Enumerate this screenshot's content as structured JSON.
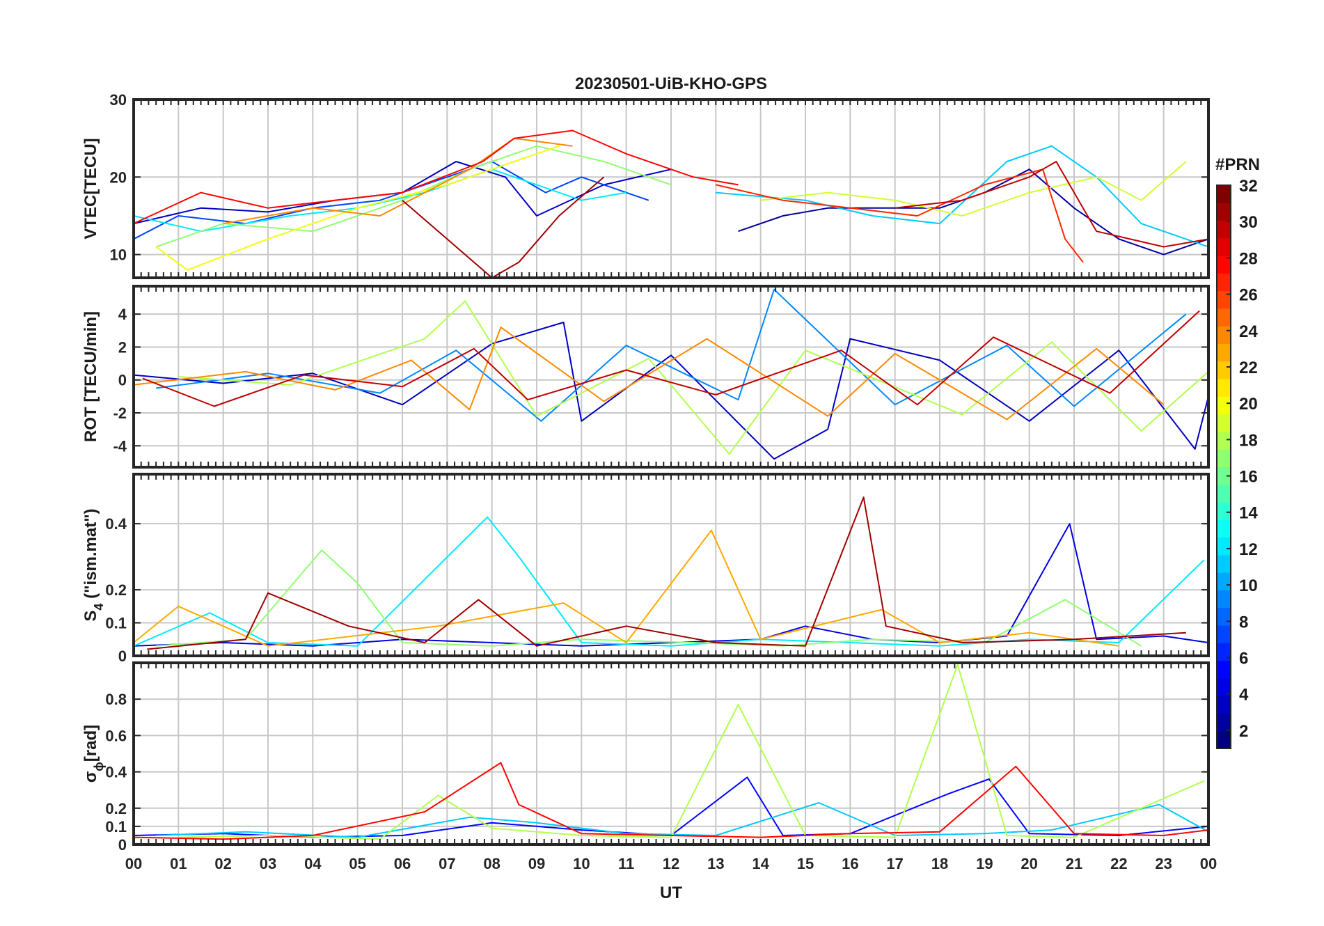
{
  "figure_title": "20230501-UiB-KHO-GPS",
  "x_axis": {
    "label": "UT",
    "range": [
      0,
      24
    ],
    "tick_labels": [
      "00",
      "01",
      "02",
      "03",
      "04",
      "05",
      "06",
      "07",
      "08",
      "09",
      "10",
      "11",
      "12",
      "13",
      "14",
      "15",
      "16",
      "17",
      "18",
      "19",
      "20",
      "21",
      "22",
      "23",
      "00"
    ]
  },
  "colorbar": {
    "label": "#PRN",
    "range": [
      1,
      32
    ],
    "tick_values": [
      2,
      4,
      6,
      8,
      10,
      12,
      14,
      16,
      18,
      20,
      22,
      24,
      26,
      28,
      30,
      32
    ],
    "tick_labels": [
      "2",
      "4",
      "6",
      "8",
      "10",
      "12",
      "14",
      "16",
      "18",
      "20",
      "22",
      "24",
      "26",
      "28",
      "30",
      "32"
    ],
    "colormap": "jet",
    "colors": [
      "#00008f",
      "#0000ff",
      "#0080ff",
      "#00ffff",
      "#80ff80",
      "#ffff00",
      "#ff8000",
      "#ff0000",
      "#800000"
    ]
  },
  "chart_data": [
    {
      "type": "line",
      "panel": "vtec",
      "ylabel": "VTEC[TECU]",
      "ylim": [
        7,
        30
      ],
      "yticks": [
        10,
        20,
        30
      ],
      "ytick_labels": [
        "10",
        "20",
        "30"
      ],
      "grid": true,
      "series": [
        {
          "prn": 3,
          "x": [
            0,
            1.5,
            3,
            4.5,
            6,
            7.2,
            8.3,
            9,
            10.5,
            12
          ],
          "y": [
            14,
            16,
            15.5,
            17,
            18,
            22,
            20,
            15,
            19,
            21
          ]
        },
        {
          "prn": 7,
          "x": [
            0,
            1,
            2.5,
            4,
            5.5,
            7,
            8,
            9.2,
            10,
            11.5
          ],
          "y": [
            12,
            15,
            14,
            16,
            17,
            20,
            22,
            18,
            20,
            17
          ]
        },
        {
          "prn": 12,
          "x": [
            0,
            1.5,
            3.5,
            5,
            6.5,
            8,
            9,
            10,
            11
          ],
          "y": [
            15,
            13,
            15,
            16,
            18,
            21,
            19,
            17,
            18
          ]
        },
        {
          "prn": 17,
          "x": [
            0.5,
            2,
            4,
            6,
            7.5,
            9,
            10.5,
            12
          ],
          "y": [
            11,
            14,
            13,
            17,
            21,
            24,
            22,
            19
          ]
        },
        {
          "prn": 20,
          "x": [
            0.5,
            1.2,
            3,
            5,
            7,
            8.5,
            9.5
          ],
          "y": [
            11,
            8,
            12,
            16,
            19,
            22,
            24
          ]
        },
        {
          "prn": 24,
          "x": [
            2,
            4,
            5.5,
            6.5,
            7.5,
            8.5,
            9.8
          ],
          "y": [
            14,
            16,
            15,
            18,
            21,
            25,
            24
          ]
        },
        {
          "prn": 28,
          "x": [
            0,
            1.5,
            3,
            6,
            7.8,
            8.5,
            9.8,
            11,
            12.5,
            13.5
          ],
          "y": [
            14,
            18,
            16,
            18,
            22,
            25,
            26,
            23,
            20,
            19
          ]
        },
        {
          "prn": 31,
          "x": [
            6,
            7,
            8,
            8.6,
            9.5,
            10.5
          ],
          "y": [
            17,
            12,
            7,
            9,
            15,
            20
          ]
        },
        {
          "prn": 2,
          "x": [
            13.5,
            14.5,
            15.5,
            17,
            18,
            19,
            20,
            21,
            22,
            23,
            24
          ],
          "y": [
            13,
            15,
            16,
            16,
            16,
            18,
            21,
            16,
            12,
            10,
            12
          ]
        },
        {
          "prn": 11,
          "x": [
            13,
            15,
            16.5,
            18,
            19.5,
            20.5,
            21.5,
            22.5,
            24
          ],
          "y": [
            18,
            17,
            15,
            14,
            22,
            24,
            20,
            14,
            11
          ]
        },
        {
          "prn": 19,
          "x": [
            14,
            15.5,
            17,
            18.5,
            20,
            21.5,
            22.5,
            23.5
          ],
          "y": [
            17,
            18,
            17,
            15,
            18,
            20,
            17,
            22
          ]
        },
        {
          "prn": 27,
          "x": [
            13,
            14.5,
            16,
            17.5,
            19,
            20.3,
            20.8,
            21.2
          ],
          "y": [
            19,
            17,
            16,
            15,
            19,
            21,
            12,
            9
          ]
        },
        {
          "prn": 30,
          "x": [
            17,
            18.5,
            20,
            20.6,
            21.5,
            23,
            24
          ],
          "y": [
            16,
            17,
            20,
            22,
            13,
            11,
            12
          ]
        }
      ]
    },
    {
      "type": "line",
      "panel": "rot",
      "ylabel": "ROT [TECU/min]",
      "ylim": [
        -5.3,
        5.7
      ],
      "yticks": [
        -4,
        -2,
        0,
        2,
        4
      ],
      "ytick_labels": [
        "-4",
        "-2",
        "0",
        "2",
        "4"
      ],
      "grid": true,
      "series": [
        {
          "prn": 3,
          "x": [
            0,
            2,
            4,
            6,
            8,
            9.6,
            10,
            12,
            14.3,
            15.5,
            16,
            18,
            20,
            22,
            23.7,
            24
          ],
          "y": [
            0.3,
            -0.2,
            0.4,
            -1.5,
            2.2,
            3.5,
            -2.5,
            1.5,
            -4.8,
            -3,
            2.5,
            1.2,
            -2.5,
            1.8,
            -4.2,
            -1
          ]
        },
        {
          "prn": 9,
          "x": [
            0.5,
            3,
            5.5,
            7.2,
            9.1,
            11,
            13.5,
            14.3,
            17,
            19.5,
            21,
            23.5
          ],
          "y": [
            -0.5,
            0.4,
            -0.8,
            1.8,
            -2.5,
            2.1,
            -1.2,
            5.5,
            -1.5,
            2.1,
            -1.6,
            4
          ]
        },
        {
          "prn": 18,
          "x": [
            1,
            3.5,
            6.5,
            7.4,
            9,
            11.5,
            13.3,
            15,
            18.5,
            20.5,
            22.5,
            24
          ],
          "y": [
            0.2,
            -0.3,
            2.5,
            4.8,
            -2.2,
            1.3,
            -4.5,
            1.8,
            -2.1,
            2.3,
            -3.1,
            0.5
          ]
        },
        {
          "prn": 24,
          "x": [
            0,
            2.5,
            4.5,
            6.2,
            7.5,
            8.2,
            10.5,
            12.8,
            15.5,
            17,
            19.5,
            21.5,
            23
          ],
          "y": [
            -0.3,
            0.5,
            -0.6,
            1.2,
            -1.8,
            3.2,
            -1.3,
            2.5,
            -2.2,
            1.6,
            -2.4,
            1.9,
            -1.5
          ]
        },
        {
          "prn": 30,
          "x": [
            0.2,
            1.8,
            3.8,
            6,
            7.6,
            8.8,
            11,
            13,
            15.8,
            17.5,
            19.2,
            21.8,
            23.8
          ],
          "y": [
            0.1,
            -1.6,
            0.3,
            -0.4,
            1.9,
            -1.2,
            0.6,
            -0.9,
            1.8,
            -1.5,
            2.6,
            -0.8,
            4.2
          ]
        }
      ]
    },
    {
      "type": "line",
      "panel": "s4",
      "ylabel_main": "S",
      "ylabel_sub": "4",
      "ylabel_rest": " (\"ism.mat\")",
      "ylim": [
        0,
        0.55
      ],
      "yticks": [
        0,
        0.1,
        0.2,
        0.4
      ],
      "ytick_labels": [
        "0",
        "0.1",
        "0.2",
        "0.4"
      ],
      "grid": true,
      "series": [
        {
          "prn": 4,
          "x": [
            0,
            2,
            4,
            6,
            8,
            10,
            12,
            14,
            15,
            16.5,
            18,
            19.5,
            20.9,
            21.5,
            23,
            24
          ],
          "y": [
            0.03,
            0.04,
            0.03,
            0.05,
            0.04,
            0.03,
            0.04,
            0.05,
            0.09,
            0.05,
            0.04,
            0.06,
            0.4,
            0.05,
            0.06,
            0.04
          ]
        },
        {
          "prn": 12,
          "x": [
            0,
            1.7,
            3,
            5,
            7.9,
            8.6,
            10,
            12,
            14,
            16,
            18,
            20,
            22,
            23.9
          ],
          "y": [
            0.03,
            0.13,
            0.04,
            0.03,
            0.42,
            0.3,
            0.04,
            0.03,
            0.05,
            0.04,
            0.03,
            0.05,
            0.04,
            0.29
          ]
        },
        {
          "prn": 17,
          "x": [
            0.5,
            2.5,
            4.2,
            5,
            6,
            8,
            10,
            12.5,
            14.5,
            16.5,
            19,
            20.8,
            22.5
          ],
          "y": [
            0.03,
            0.05,
            0.32,
            0.22,
            0.04,
            0.03,
            0.05,
            0.04,
            0.03,
            0.05,
            0.04,
            0.17,
            0.03
          ]
        },
        {
          "prn": 23,
          "x": [
            0,
            1,
            3,
            6.8,
            9.6,
            11,
            12.9,
            14,
            16.7,
            18,
            20,
            22
          ],
          "y": [
            0.04,
            0.15,
            0.03,
            0.09,
            0.16,
            0.04,
            0.38,
            0.05,
            0.14,
            0.04,
            0.07,
            0.03
          ]
        },
        {
          "prn": 31,
          "x": [
            0.3,
            2.5,
            3,
            4.8,
            6.5,
            7.7,
            9,
            11,
            13,
            15,
            16.3,
            16.8,
            18.5,
            21,
            23.5
          ],
          "y": [
            0.02,
            0.05,
            0.19,
            0.09,
            0.04,
            0.17,
            0.03,
            0.09,
            0.04,
            0.03,
            0.48,
            0.09,
            0.04,
            0.05,
            0.07
          ]
        }
      ]
    },
    {
      "type": "line",
      "panel": "sigma_phi",
      "ylabel_main": "σ",
      "ylabel_sub": "ϕ",
      "ylabel_rest": "[rad]",
      "ylim": [
        0,
        1
      ],
      "yticks": [
        0,
        0.1,
        0.2,
        0.4,
        0.6,
        0.8
      ],
      "ytick_labels": [
        "0",
        "0.1",
        "0.2",
        "0.4",
        "0.6",
        "0.8"
      ],
      "grid": true,
      "series": [
        {
          "prn": 5,
          "x": [
            0,
            2,
            4,
            6,
            8,
            10,
            12,
            13.7,
            14.5,
            16,
            18.2,
            19.1,
            20,
            22,
            24
          ],
          "y": [
            0.05,
            0.06,
            0.04,
            0.05,
            0.12,
            0.08,
            0.05,
            0.37,
            0.05,
            0.06,
            0.28,
            0.36,
            0.06,
            0.05,
            0.1
          ]
        },
        {
          "prn": 11,
          "x": [
            0.5,
            2.5,
            5,
            7.5,
            9,
            11,
            13,
            15.3,
            17,
            19,
            20.5,
            22.9,
            24
          ],
          "y": [
            0.05,
            0.07,
            0.04,
            0.15,
            0.12,
            0.06,
            0.05,
            0.23,
            0.05,
            0.06,
            0.08,
            0.22,
            0.07
          ]
        },
        {
          "prn": 18,
          "x": [
            1,
            3,
            5.5,
            6.8,
            8,
            10,
            12,
            13.5,
            15,
            17,
            18.4,
            19.5,
            21,
            23.9
          ],
          "y": [
            0.04,
            0.05,
            0.03,
            0.27,
            0.09,
            0.05,
            0.04,
            0.77,
            0.05,
            0.04,
            0.99,
            0.05,
            0.04,
            0.35
          ]
        },
        {
          "prn": 28,
          "x": [
            0,
            2,
            4,
            6.5,
            8.2,
            8.6,
            10,
            12,
            14,
            16,
            18,
            19.7,
            21,
            23,
            24
          ],
          "y": [
            0.04,
            0.03,
            0.05,
            0.18,
            0.45,
            0.22,
            0.06,
            0.05,
            0.04,
            0.06,
            0.07,
            0.43,
            0.06,
            0.05,
            0.08
          ]
        }
      ]
    }
  ]
}
